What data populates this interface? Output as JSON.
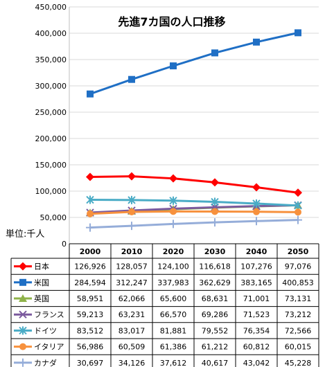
{
  "chart_data": {
    "type": "line",
    "title": "先進7カ国の人口推移",
    "unit_label": "単位:千人",
    "categories": [
      "2000",
      "2010",
      "2020",
      "2030",
      "2040",
      "2050"
    ],
    "ylim": [
      0,
      450000
    ],
    "yticks": [
      0,
      50000,
      100000,
      150000,
      200000,
      250000,
      300000,
      350000,
      400000,
      450000
    ],
    "ytick_labels": [
      "0",
      "50,000",
      "100,000",
      "150,000",
      "200,000",
      "250,000",
      "300,000",
      "350,000",
      "400,000",
      "450,000"
    ],
    "grid": true,
    "legend": "data-table-below",
    "series": [
      {
        "name": "日本",
        "color": "#ff0000",
        "marker": "diamond",
        "values": [
          126926,
          128057,
          124100,
          116618,
          107276,
          97076
        ],
        "labels": [
          "126,926",
          "128,057",
          "124,100",
          "116,618",
          "107,276",
          "97,076"
        ]
      },
      {
        "name": "米国",
        "color": "#1f6fc5",
        "marker": "square",
        "values": [
          284594,
          312247,
          337983,
          362629,
          383165,
          400853
        ],
        "labels": [
          "284,594",
          "312,247",
          "337,983",
          "362,629",
          "383,165",
          "400,853"
        ]
      },
      {
        "name": "英国",
        "color": "#8fb34a",
        "marker": "triangle",
        "values": [
          58951,
          62066,
          65600,
          68631,
          71001,
          73131
        ],
        "labels": [
          "58,951",
          "62,066",
          "65,600",
          "68,631",
          "71,001",
          "73,131"
        ]
      },
      {
        "name": "フランス",
        "color": "#7b5a9e",
        "marker": "x",
        "values": [
          59213,
          63231,
          66570,
          69286,
          71523,
          73212
        ],
        "labels": [
          "59,213",
          "63,231",
          "66,570",
          "69,286",
          "71,523",
          "73,212"
        ]
      },
      {
        "name": "ドイツ",
        "color": "#4aacc6",
        "marker": "star",
        "values": [
          83512,
          83017,
          81881,
          79552,
          76354,
          72566
        ],
        "labels": [
          "83,512",
          "83,017",
          "81,881",
          "79,552",
          "76,354",
          "72,566"
        ]
      },
      {
        "name": "イタリア",
        "color": "#f7913d",
        "marker": "circle",
        "values": [
          56986,
          60509,
          61386,
          61212,
          60812,
          60015
        ],
        "labels": [
          "56,986",
          "60,509",
          "61,386",
          "61,212",
          "60,812",
          "60,015"
        ]
      },
      {
        "name": "カナダ",
        "color": "#95add9",
        "marker": "plus",
        "values": [
          30697,
          34126,
          37612,
          40617,
          43042,
          45228
        ],
        "labels": [
          "30,697",
          "34,126",
          "37,612",
          "40,617",
          "43,042",
          "45,228"
        ]
      }
    ]
  }
}
